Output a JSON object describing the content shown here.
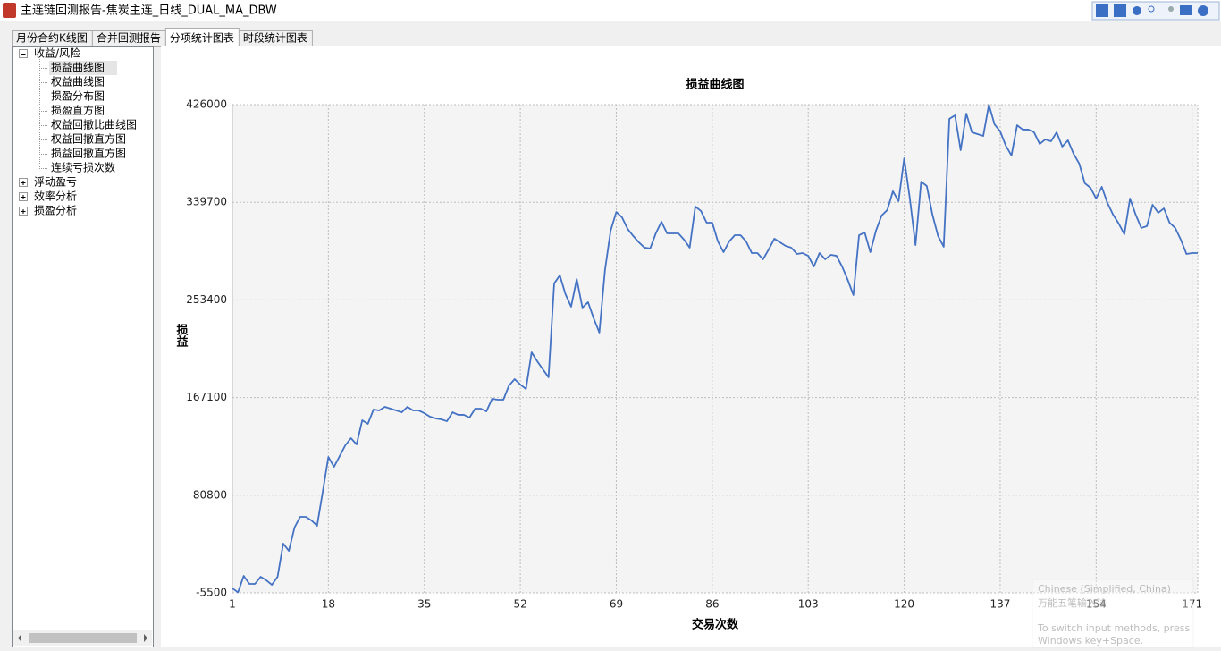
{
  "window": {
    "title": "主连链回测报告-焦炭主连_日线_DUAL_MA_DBW"
  },
  "tabs": [
    {
      "label": "月份合约K线图",
      "selected": false
    },
    {
      "label": "合并回测报告",
      "selected": false
    },
    {
      "label": "分项统计图表",
      "selected": true
    },
    {
      "label": "时段统计图表",
      "selected": false
    }
  ],
  "tree": [
    {
      "label": "收益/风险",
      "expanded": true,
      "children": [
        {
          "label": "损益曲线图",
          "selected": true
        },
        {
          "label": "权益曲线图"
        },
        {
          "label": "损盈分布图"
        },
        {
          "label": "损盈直方图"
        },
        {
          "label": "权益回撤比曲线图"
        },
        {
          "label": "权益回撤直方图"
        },
        {
          "label": "损益回撤直方图"
        },
        {
          "label": "连续亏损次数"
        }
      ]
    },
    {
      "label": "浮动盈亏",
      "expanded": false
    },
    {
      "label": "效率分析",
      "expanded": false
    },
    {
      "label": "损盈分析",
      "expanded": false
    }
  ],
  "ime_popup": {
    "language": "Chinese (Simplified, China)",
    "input_method": "万能五笔输入法",
    "hint": [
      "To switch input methods, press",
      "Windows key+Space."
    ]
  },
  "chart_data": {
    "type": "line",
    "title": "损益曲线图",
    "x_label": "交易次数",
    "y_label": "损益",
    "color": "#4472c4",
    "grid": true,
    "x": [
      1,
      2,
      3,
      4,
      5,
      6,
      7,
      8,
      9,
      10,
      11,
      12,
      13,
      14,
      15,
      16,
      17,
      18,
      19,
      20,
      21,
      22,
      23,
      24,
      25,
      26,
      27,
      28,
      29,
      30,
      31,
      32,
      33,
      34,
      35,
      36,
      37,
      38,
      39,
      40,
      41,
      42,
      43,
      44,
      45,
      46,
      47,
      48,
      49,
      50,
      51,
      52,
      53,
      54,
      55,
      56,
      57,
      58,
      59,
      60,
      61,
      62,
      63,
      64,
      65,
      66,
      67,
      68,
      69,
      70,
      71,
      72,
      73,
      74,
      75,
      76,
      77,
      78,
      79,
      80,
      81,
      82,
      83,
      84,
      85,
      86,
      87,
      88,
      89,
      90,
      91,
      92,
      93,
      94,
      95,
      96,
      97,
      98,
      99,
      100,
      101,
      102,
      103,
      104,
      105,
      106,
      107,
      108,
      109,
      110,
      111,
      112,
      113,
      114,
      115,
      116,
      117,
      118,
      119,
      120,
      121,
      122,
      123,
      124,
      125,
      126,
      127,
      128,
      129,
      130,
      131,
      132,
      133,
      134,
      135,
      136,
      137,
      138,
      139,
      140,
      141,
      142,
      143,
      144,
      145,
      146,
      147,
      148,
      149,
      150,
      151,
      152,
      153,
      154,
      155,
      156,
      157,
      158,
      159,
      160,
      161,
      162,
      163,
      164,
      165,
      166,
      167,
      168,
      169,
      170,
      171,
      172
    ],
    "values": [
      -1500,
      -5000,
      9500,
      2400,
      2400,
      8700,
      5600,
      1600,
      8700,
      38000,
      31600,
      52200,
      61700,
      61700,
      58500,
      53800,
      83800,
      114600,
      105900,
      115400,
      124900,
      131200,
      125700,
      147000,
      143900,
      156500,
      155700,
      158900,
      157300,
      155700,
      154100,
      158900,
      155700,
      155700,
      153300,
      150200,
      148600,
      147800,
      146200,
      154100,
      151800,
      151800,
      149400,
      157300,
      157300,
      154900,
      166000,
      165200,
      165200,
      177800,
      183400,
      178600,
      174700,
      207100,
      199200,
      192100,
      185000,
      268000,
      275100,
      258500,
      247400,
      271900,
      246600,
      251400,
      237100,
      224500,
      279800,
      314600,
      331100,
      326500,
      316200,
      309900,
      304300,
      299600,
      298800,
      312200,
      322500,
      312200,
      312200,
      312200,
      306700,
      299600,
      335900,
      332000,
      321700,
      321700,
      305100,
      295600,
      305100,
      310600,
      310600,
      305100,
      294800,
      294800,
      289300,
      298000,
      307500,
      304300,
      301100,
      299600,
      294000,
      294800,
      292400,
      282900,
      294800,
      289300,
      293200,
      292400,
      282900,
      271100,
      257700,
      310600,
      313000,
      295600,
      314600,
      328000,
      332800,
      349400,
      340700,
      378600,
      343000,
      301900,
      357900,
      354100,
      328800,
      309900,
      300400,
      413400,
      416500,
      385700,
      418100,
      401500,
      399900,
      398300,
      426000,
      408600,
      402300,
      389700,
      381000,
      407800,
      403900,
      403900,
      401500,
      391200,
      395200,
      393600,
      401500,
      388900,
      394400,
      382600,
      373900,
      356500,
      352500,
      343000,
      353300,
      339100,
      328800,
      320900,
      311400,
      343000,
      328800,
      317000,
      318600,
      337500,
      330400,
      334300,
      321700,
      317000,
      306700,
      294000,
      294800,
      294800
    ],
    "xlim": [
      1,
      172
    ],
    "xticks": [
      1,
      18,
      35,
      52,
      69,
      86,
      103,
      120,
      137,
      154,
      171
    ],
    "ylim": [
      -5500,
      426000
    ],
    "yticks": [
      -5500,
      80800,
      167100,
      253400,
      339700,
      426000
    ]
  }
}
